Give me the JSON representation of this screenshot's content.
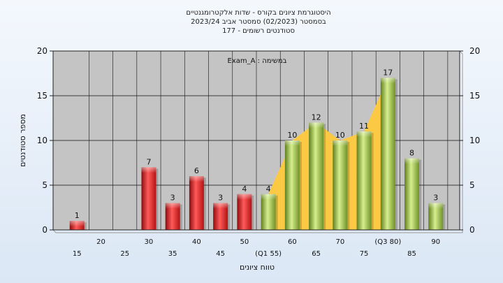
{
  "chart_data": {
    "type": "bar",
    "title_lines": [
      "היסטוגרמת ציונים בקורס - שדות אלקטרומגנטיים",
      "בסמסטר  (02/2023)  סמסטר אביב 2023/24",
      "סטודנטים רשומים - 177"
    ],
    "annotation": "במשימה : Exam_A",
    "ylabel": "מספר סטודנטים",
    "xlabel": "טווח ציונים",
    "ylim": [
      0,
      20
    ],
    "yticks": [
      0,
      5,
      10,
      15,
      20
    ],
    "categories": [
      "15",
      "20",
      "25",
      "30",
      "35",
      "40",
      "45",
      "50",
      "55",
      "60",
      "65",
      "70",
      "75",
      "80",
      "85",
      "90"
    ],
    "tick_labels": [
      "15",
      "20",
      "25",
      "30",
      "35",
      "40",
      "45",
      "50",
      "(Q1 55)",
      "60",
      "65",
      "70",
      "75",
      "(Q3 80)",
      "85",
      "90"
    ],
    "values": [
      1,
      0,
      0,
      7,
      3,
      6,
      3,
      4,
      4,
      10,
      12,
      10,
      11,
      17,
      8,
      3
    ],
    "labeled": [
      true,
      false,
      false,
      true,
      true,
      true,
      true,
      true,
      true,
      true,
      true,
      true,
      true,
      true,
      true,
      true
    ],
    "fail_threshold": 55,
    "colors": {
      "fail": "#e01f1f",
      "pass": "#8fb53c",
      "band": "#fbc944",
      "plot_bg": "#c4c4c4"
    },
    "grid": true
  }
}
